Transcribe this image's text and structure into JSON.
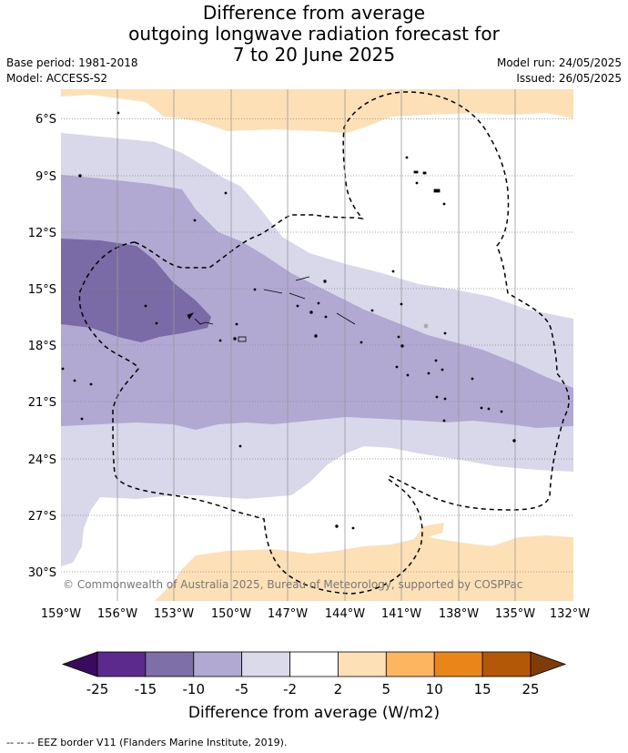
{
  "header": {
    "title_lines": [
      "Difference from average",
      "outgoing longwave radiation forecast for",
      "7 to 20 June 2025"
    ],
    "base_period": "Base period: 1981-2018",
    "model": "Model: ACCESS-S2",
    "model_run": "Model run: 24/05/2025",
    "issued": "Issued: 26/05/2025"
  },
  "map": {
    "lat_labels": [
      "6°S",
      "9°S",
      "12°S",
      "15°S",
      "18°S",
      "21°S",
      "24°S",
      "27°S",
      "30°S"
    ],
    "lon_labels": [
      "159°W",
      "156°W",
      "153°W",
      "150°W",
      "147°W",
      "144°W",
      "141°W",
      "138°W",
      "135°W",
      "132°W"
    ],
    "copyright": "© Commonwealth of Australia 2025, Bureau of Meteorology, supported by COSPPac",
    "colors": {
      "dark_purple": "#7a6aa6",
      "mid_purple": "#b1a9d1",
      "light_purple": "#d8d8ea",
      "light_orange": "#fde0b6",
      "grid": "#888888"
    }
  },
  "colorbar": {
    "ticks": [
      "-25",
      "-15",
      "-10",
      "-5",
      "-2",
      "2",
      "5",
      "10",
      "15",
      "25"
    ],
    "colors": [
      "#3b0a5f",
      "#5b2a8c",
      "#7f6fa9",
      "#b1a9d1",
      "#dadaeb",
      "#ffffff",
      "#fde0b6",
      "#fdb55f",
      "#e8861a",
      "#b35806",
      "#7f3b08"
    ],
    "label": "Difference from average (W/m2)"
  },
  "footer": {
    "legend_text": "--  --  -- EEZ border V11 (Flanders Marine Institute, 2019)."
  }
}
